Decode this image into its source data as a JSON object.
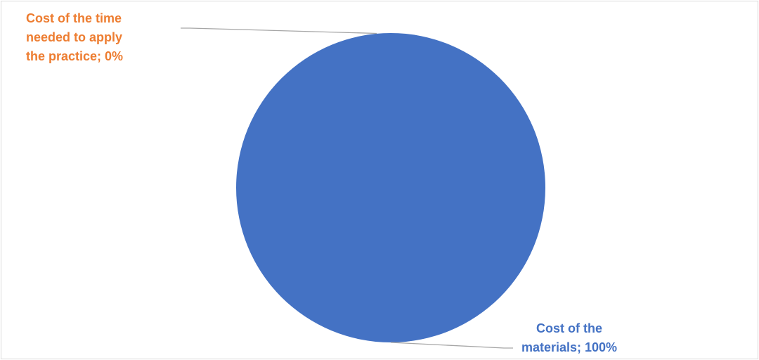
{
  "chart_data": {
    "type": "pie",
    "title": "",
    "slices": [
      {
        "name": "Cost of the materials",
        "value": 100,
        "percent_label": "100%",
        "color": "#4472C4",
        "label_lines": [
          "Cost of the",
          "materials; 100%"
        ]
      },
      {
        "name": "Cost of the time needed to apply the practice",
        "value": 0,
        "percent_label": "0%",
        "color": "#ED7D31",
        "label_lines": [
          "Cost of the time",
          "needed to apply",
          "the practice; 0%"
        ]
      }
    ],
    "legend": "none",
    "data_labels": "outside-with-leader-lines"
  }
}
